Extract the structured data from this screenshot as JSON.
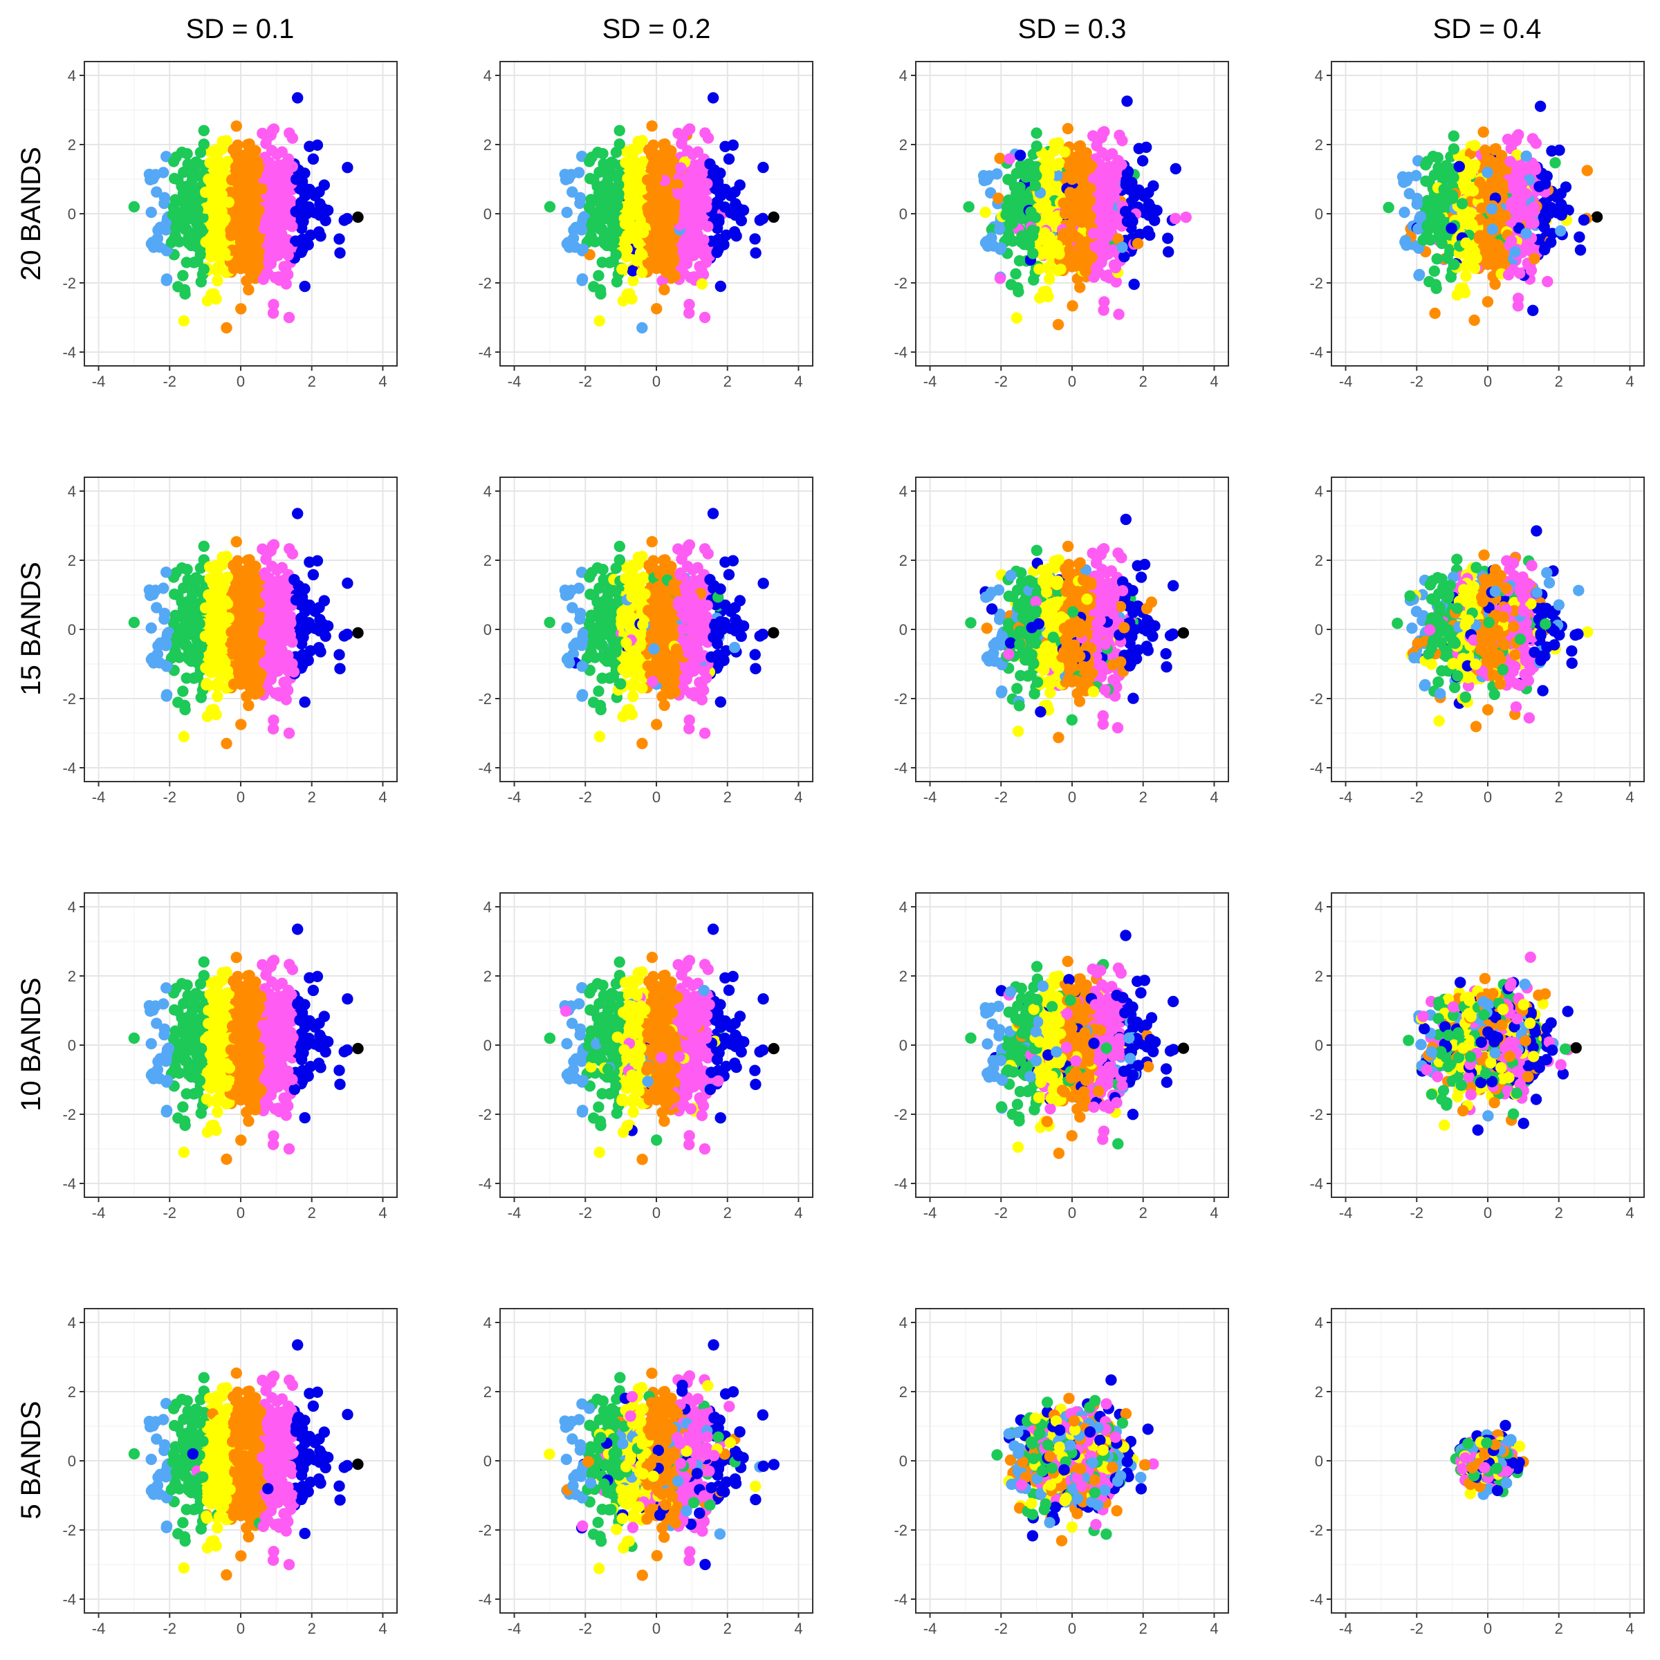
{
  "column_titles": [
    "SD = 0.1",
    "SD = 0.2",
    "SD = 0.3",
    "SD = 0.4"
  ],
  "row_titles": [
    "20 BANDS",
    "15 BANDS",
    "10 BANDS",
    "5 BANDS"
  ],
  "colors": {
    "band_1": "#55a8f5",
    "band_2": "#1dc957",
    "band_3": "#ffff00",
    "band_4": "#ff8c00",
    "band_5": "#ff5cf3",
    "band_6": "#0000ea",
    "grid": "#e5e5e5",
    "panel_border": "#333333"
  },
  "chart_data": {
    "type": "scatter",
    "layout": "facet-grid 4x4",
    "xlim": [
      -4.4,
      4.4
    ],
    "ylim": [
      -4.4,
      4.4
    ],
    "x_ticks": [
      -4,
      -2,
      0,
      2,
      4
    ],
    "y_ticks": [
      -4,
      -2,
      0,
      2,
      4
    ],
    "x_tick_labels": [
      "-4",
      "-2",
      "0",
      "2",
      "4"
    ],
    "y_tick_labels": [
      "-4",
      "-2",
      "0",
      "2",
      "4"
    ],
    "grid": true,
    "xlabel": "",
    "ylabel": "",
    "band_colors": [
      "band_1",
      "band_2",
      "band_3",
      "band_4",
      "band_5",
      "band_6"
    ],
    "band_x_edges": [
      -3.2,
      -2.0,
      -1.0,
      -0.3,
      0.6,
      1.5,
      3.3
    ],
    "point_cloud": {
      "n_points": 900,
      "x_sd": 1.0,
      "y_sd": 1.0,
      "radius_sd_units": 3.3
    },
    "outlier_points": [
      {
        "x": 1.6,
        "y": 3.35,
        "band": 5
      },
      {
        "x": -0.4,
        "y": -3.3,
        "band": 3
      },
      {
        "x": -1.6,
        "y": -3.1,
        "band": 2
      },
      {
        "x": 3.3,
        "y": -0.1,
        "band": 6
      },
      {
        "x": -3.0,
        "y": 0.2,
        "band": 1
      }
    ],
    "panels": [
      {
        "row": 0,
        "col": 0,
        "mix": 0.0,
        "scale": 1.0
      },
      {
        "row": 0,
        "col": 1,
        "mix": 0.05,
        "scale": 1.0
      },
      {
        "row": 0,
        "col": 2,
        "mix": 0.12,
        "scale": 0.97
      },
      {
        "row": 0,
        "col": 3,
        "mix": 0.2,
        "scale": 0.93
      },
      {
        "row": 1,
        "col": 0,
        "mix": 0.0,
        "scale": 1.0
      },
      {
        "row": 1,
        "col": 1,
        "mix": 0.07,
        "scale": 1.0
      },
      {
        "row": 1,
        "col": 2,
        "mix": 0.18,
        "scale": 0.95
      },
      {
        "row": 1,
        "col": 3,
        "mix": 0.35,
        "scale": 0.85
      },
      {
        "row": 2,
        "col": 0,
        "mix": 0.0,
        "scale": 1.0
      },
      {
        "row": 2,
        "col": 1,
        "mix": 0.08,
        "scale": 1.0
      },
      {
        "row": 2,
        "col": 2,
        "mix": 0.25,
        "scale": 0.95
      },
      {
        "row": 2,
        "col": 3,
        "mix": 0.65,
        "scale": 0.75
      },
      {
        "row": 3,
        "col": 0,
        "mix": 0.02,
        "scale": 1.0
      },
      {
        "row": 3,
        "col": 1,
        "mix": 0.25,
        "scale": 1.0
      },
      {
        "row": 3,
        "col": 2,
        "mix": 0.8,
        "scale": 0.7
      },
      {
        "row": 3,
        "col": 3,
        "mix": 1.0,
        "scale": 0.3
      }
    ]
  }
}
